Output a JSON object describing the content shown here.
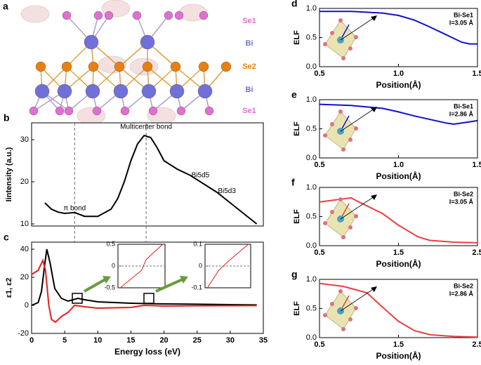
{
  "structure": {
    "panel": "a",
    "labels": [
      "Se1",
      "Bi",
      "Se2",
      "Bi",
      "Se1"
    ]
  },
  "chart_data": [
    {
      "type": "line",
      "panel": "b",
      "ylabel": "Iintensity (a.u.)",
      "xlim": [
        0,
        35
      ],
      "ylim": [
        9.5,
        34
      ],
      "yticks": [
        10,
        20,
        30
      ],
      "vlines": [
        6.5,
        17.3
      ],
      "annotations": [
        "π bond",
        "Multicenter bond",
        "Bi5d5",
        "Bi5d3"
      ],
      "series": [
        {
          "color": "#000000",
          "x": [
            2,
            3,
            4,
            5,
            6.5,
            8,
            10,
            12,
            13,
            14,
            15,
            16,
            17,
            18,
            19,
            20,
            22,
            24,
            26,
            28,
            30,
            32,
            34
          ],
          "values": [
            15,
            13.5,
            12.8,
            12.5,
            12.7,
            11.8,
            11.8,
            13.5,
            16,
            20,
            25,
            29,
            31,
            30.5,
            28,
            25,
            23,
            21.5,
            19.5,
            17.5,
            15,
            12.5,
            10
          ]
        }
      ]
    },
    {
      "type": "line",
      "panel": "c",
      "ylabel": "ε1, ε2",
      "xlabel": "Energy loss (eV)",
      "xlim": [
        0,
        35
      ],
      "ylim": [
        -20,
        45
      ],
      "xticks": [
        0,
        5,
        10,
        15,
        20,
        25,
        30,
        35
      ],
      "yticks": [
        -20,
        0,
        20,
        40
      ],
      "series": [
        {
          "color": "#000000",
          "x": [
            0,
            1,
            1.5,
            2,
            2.3,
            2.8,
            3.5,
            4.5,
            5.5,
            7,
            8,
            10,
            15,
            20,
            25,
            30,
            34
          ],
          "values": [
            0,
            2,
            10,
            30,
            40,
            30,
            12,
            5,
            3,
            5,
            4,
            2.5,
            1.5,
            1,
            0.8,
            0.5,
            0.3
          ]
        },
        {
          "color": "#e02020",
          "x": [
            0,
            1,
            1.7,
            2.1,
            2.6,
            3,
            3.6,
            4.5,
            5.5,
            6.5,
            8,
            10,
            15,
            17,
            20,
            25,
            34
          ],
          "values": [
            22,
            25,
            32,
            25,
            0,
            -10,
            -12,
            -8,
            -5,
            0,
            -1,
            -2,
            -1.5,
            0,
            -0.5,
            -0.3,
            -0.2
          ]
        }
      ]
    },
    {
      "type": "line",
      "xlim": [
        6,
        7
      ],
      "ylim": [
        -0.5,
        0.5
      ],
      "yticks": [
        -0.5,
        0,
        0.5
      ],
      "hlines": [
        0
      ],
      "series": [
        {
          "color": "#e02020",
          "x": [
            6.05,
            6.5,
            6.6,
            6.95
          ],
          "values": [
            -0.5,
            -0.1,
            0.15,
            0.5
          ]
        }
      ]
    },
    {
      "type": "line",
      "xlim": [
        17,
        18
      ],
      "ylim": [
        -0.1,
        0.1
      ],
      "yticks": [
        -0.1,
        0,
        0.1
      ],
      "hlines": [
        0
      ],
      "series": [
        {
          "color": "#e02020",
          "x": [
            17.05,
            17.3,
            17.5,
            17.95
          ],
          "values": [
            -0.1,
            -0.02,
            0.02,
            0.1
          ]
        }
      ]
    },
    {
      "type": "line",
      "panel": "d",
      "ylabel": "ELF",
      "xlabel": "Position(Å)",
      "label": [
        "Bi-Se1",
        "l=3.05 Å"
      ],
      "xlim": [
        0.5,
        1.5
      ],
      "ylim": [
        0,
        1
      ],
      "xticks": [
        0.5,
        {
          "value": 1,
          "label": "1.0"
        },
        1.5
      ],
      "yticks": [
        {
          "value": 0,
          "label": "0.0"
        },
        0.5,
        {
          "value": 1,
          "label": "1.0"
        }
      ],
      "series": [
        {
          "color": "#1010d0",
          "x": [
            0.5,
            0.7,
            0.9,
            1.0,
            1.1,
            1.2,
            1.3,
            1.4,
            1.45,
            1.5
          ],
          "values": [
            0.95,
            0.95,
            0.92,
            0.88,
            0.8,
            0.68,
            0.55,
            0.42,
            0.39,
            0.39
          ]
        }
      ]
    },
    {
      "type": "line",
      "panel": "e",
      "ylabel": "ELF",
      "xlabel": "Position(Å)",
      "label": [
        "Bi-Se1",
        "l=2.86 Å"
      ],
      "xlim": [
        0.5,
        1.5
      ],
      "ylim": [
        0,
        1
      ],
      "xticks": [
        0.5,
        {
          "value": 1,
          "label": "1.0"
        },
        1.5
      ],
      "yticks": [
        {
          "value": 0,
          "label": "0.0"
        },
        0.5,
        {
          "value": 1,
          "label": "1.0"
        }
      ],
      "series": [
        {
          "color": "#1010d0",
          "x": [
            0.5,
            0.7,
            0.9,
            1.0,
            1.1,
            1.2,
            1.3,
            1.35,
            1.4,
            1.5
          ],
          "values": [
            0.92,
            0.9,
            0.85,
            0.79,
            0.72,
            0.66,
            0.6,
            0.58,
            0.6,
            0.64
          ]
        }
      ]
    },
    {
      "type": "line",
      "panel": "f",
      "ylabel": "ELF",
      "xlabel": "Position(Å)",
      "label": [
        "Bi-Se2",
        "l=3.05 Å"
      ],
      "xlim": [
        0.5,
        2.5
      ],
      "ylim": [
        0,
        1
      ],
      "xticks": [
        0.5,
        1.5,
        2.5
      ],
      "yticks": [
        {
          "value": 0,
          "label": "0.0"
        },
        0.5,
        {
          "value": 1,
          "label": "1.0"
        }
      ],
      "series": [
        {
          "color": "#e84040",
          "x": [
            0.5,
            0.9,
            1.0,
            1.3,
            1.5,
            1.75,
            1.9,
            2.2,
            2.5
          ],
          "values": [
            0.75,
            0.82,
            0.75,
            0.55,
            0.35,
            0.15,
            0.09,
            0.06,
            0.05
          ]
        }
      ]
    },
    {
      "type": "line",
      "panel": "g",
      "ylabel": "ELF",
      "xlabel": "Position(Å)",
      "label": [
        "Bi-Se2",
        "l=2.86 Å"
      ],
      "xlim": [
        0.5,
        2.5
      ],
      "ylim": [
        0,
        1
      ],
      "xticks": [
        0.5,
        1.5,
        2.5
      ],
      "yticks": [
        {
          "value": 0,
          "label": "0.0"
        },
        0.5,
        {
          "value": 1,
          "label": "1.0"
        }
      ],
      "series": [
        {
          "color": "#e84040",
          "x": [
            0.5,
            0.8,
            1.1,
            1.3,
            1.5,
            1.7,
            1.9,
            2.2,
            2.5
          ],
          "values": [
            0.93,
            0.88,
            0.77,
            0.52,
            0.28,
            0.12,
            0.05,
            0.02,
            0.01
          ]
        }
      ]
    }
  ]
}
